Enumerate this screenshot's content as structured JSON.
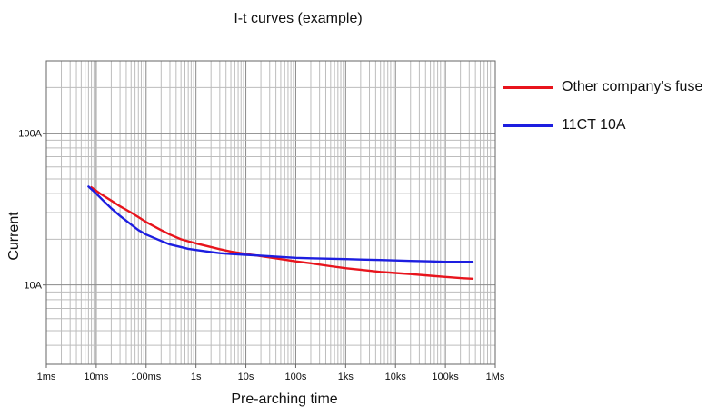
{
  "chart_data": {
    "type": "line",
    "title": "I-t curves (example)",
    "xlabel": "Pre-arching time",
    "ylabel": "Current",
    "x_scale": "log",
    "y_scale": "log",
    "xlim": [
      "1ms",
      "1Ms"
    ],
    "ylim": [
      "3A",
      "300A"
    ],
    "x_ticks": [
      {
        "value": 0.001,
        "label": "1ms"
      },
      {
        "value": 0.01,
        "label": "10ms"
      },
      {
        "value": 0.1,
        "label": "100ms"
      },
      {
        "value": 1,
        "label": "1s"
      },
      {
        "value": 10,
        "label": "10s"
      },
      {
        "value": 100,
        "label": "100s"
      },
      {
        "value": 1000,
        "label": "1ks"
      },
      {
        "value": 10000,
        "label": "10ks"
      },
      {
        "value": 100000,
        "label": "100ks"
      },
      {
        "value": 1000000,
        "label": "1Ms"
      }
    ],
    "y_ticks": [
      {
        "value": 10,
        "label": "10A"
      },
      {
        "value": 100,
        "label": "100A"
      }
    ],
    "grid": true,
    "legend_position": "right",
    "series": [
      {
        "name": "Other company’s fuse",
        "color": "#e8141c",
        "x": [
          "8ms",
          "12ms",
          "20ms",
          "30ms",
          "50ms",
          "70ms",
          "100ms",
          "200ms",
          "300ms",
          "500ms",
          "700ms",
          "1s",
          "2s",
          "3s",
          "5s",
          "10s",
          "20s",
          "50s",
          "100s",
          "200s",
          "500s",
          "1ks",
          "2ks",
          "5ks",
          "10ks",
          "20ks",
          "50ks",
          "100ks",
          "200ks",
          "350ks"
        ],
        "values": [
          44,
          40,
          36,
          33,
          30,
          28,
          26,
          23,
          21.5,
          20,
          19.4,
          18.8,
          17.8,
          17.2,
          16.6,
          16,
          15.5,
          14.8,
          14.3,
          13.9,
          13.3,
          12.9,
          12.6,
          12.2,
          12,
          11.8,
          11.5,
          11.3,
          11.1,
          11
        ]
      },
      {
        "name": "11CT 10A",
        "color": "#1d1ee0",
        "x": [
          "7ms",
          "10ms",
          "15ms",
          "20ms",
          "30ms",
          "50ms",
          "70ms",
          "100ms",
          "200ms",
          "300ms",
          "500ms",
          "700ms",
          "1s",
          "2s",
          "3s",
          "5s",
          "10s",
          "20s",
          "50s",
          "100s",
          "200s",
          "500s",
          "1ks",
          "2ks",
          "5ks",
          "10ks",
          "20ks",
          "50ks",
          "100ks",
          "200ks",
          "350ks"
        ],
        "values": [
          44.5,
          40,
          35,
          32,
          28.5,
          25,
          23,
          21.5,
          19.5,
          18.5,
          17.8,
          17.3,
          17,
          16.5,
          16.2,
          16,
          15.8,
          15.6,
          15.3,
          15.1,
          15,
          14.9,
          14.8,
          14.7,
          14.6,
          14.5,
          14.4,
          14.3,
          14.2,
          14.2,
          14.2
        ]
      }
    ]
  }
}
